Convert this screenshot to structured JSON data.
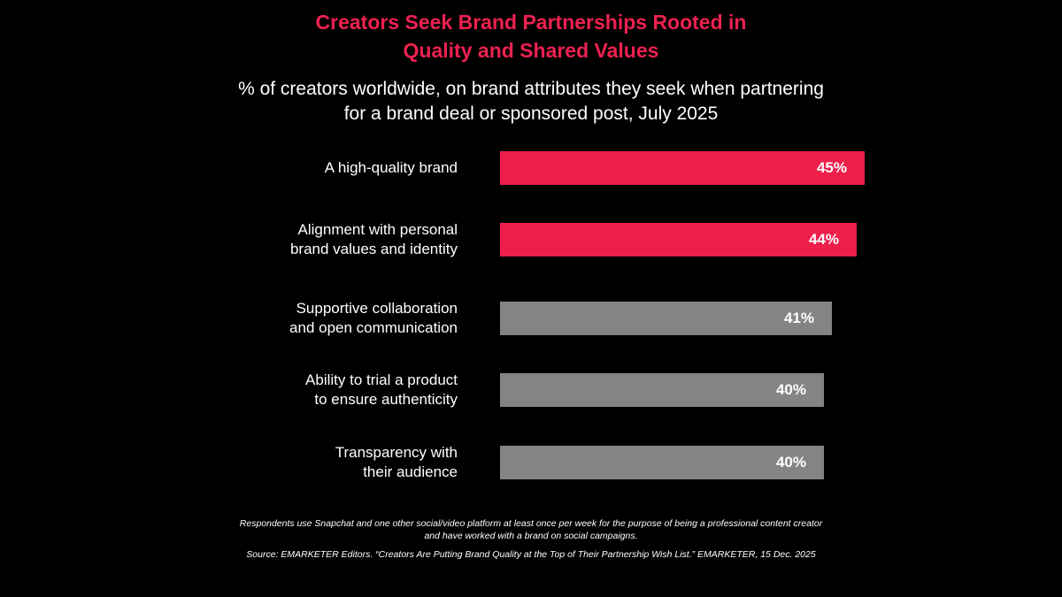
{
  "header": {
    "title_line1": "Creators Seek Brand Partnerships Rooted in",
    "title_line2": "Quality and Shared Values",
    "subtitle_line1": "% of creators worldwide, on brand attributes they seek when partnering",
    "subtitle_line2": "for a brand deal or sponsored post, July 2025"
  },
  "colors": {
    "background": "#000000",
    "highlight_bar": "#EE1F4B",
    "default_bar": "#848487",
    "title": "#EE2150",
    "text": "#FFFFFF"
  },
  "bars": [
    {
      "label": "A high-quality brand",
      "value": 45,
      "value_label": "45%",
      "highlight": true
    },
    {
      "label": "Alignment with personal\nbrand values and identity",
      "value": 44,
      "value_label": "44%",
      "highlight": true
    },
    {
      "label": "Supportive collaboration\nand open communication",
      "value": 41,
      "value_label": "41%",
      "highlight": false
    },
    {
      "label": "Ability to trial a product\nto ensure authenticity",
      "value": 40,
      "value_label": "40%",
      "highlight": false
    },
    {
      "label": "Transparency with\ntheir audience",
      "value": 40,
      "value_label": "40%",
      "highlight": false
    }
  ],
  "footer": {
    "note_line1": "Respondents use Snapchat and one other social/video platform at least once per week for the purpose of being a professional content creator",
    "note_line2": "and have worked with a brand on social campaigns.",
    "source": "Source: EMARKETER Editors. “Creators Are Putting Brand Quality at the Top of Their Partnership Wish List.” EMARKETER, 15 Dec. 2025"
  },
  "chart_data": {
    "type": "bar",
    "orientation": "horizontal",
    "title": "Creators Seek Brand Partnerships Rooted in Quality and Shared Values",
    "subtitle": "% of creators worldwide, on brand attributes they seek when partnering for a brand deal or sponsored post, July 2025",
    "categories": [
      "A high-quality brand",
      "Alignment with personal brand values and identity",
      "Supportive collaboration and open communication",
      "Ability to trial a product to ensure authenticity",
      "Transparency with their audience"
    ],
    "values": [
      45,
      44,
      41,
      40,
      40
    ],
    "value_labels": [
      "45%",
      "44%",
      "41%",
      "40%",
      "40%"
    ],
    "highlighted": [
      true,
      true,
      false,
      false,
      false
    ],
    "xlabel": "",
    "ylabel": "",
    "unit": "%",
    "grid": false,
    "legend": null,
    "annotations": [
      "Respondents use Snapchat and one other social/video platform at least once per week for the purpose of being a professional content creator and have worked with a brand on social campaigns.",
      "Source: EMARKETER Editors. “Creators Are Putting Brand Quality at the Top of Their Partnership Wish List.” EMARKETER, 15 Dec. 2025"
    ]
  }
}
